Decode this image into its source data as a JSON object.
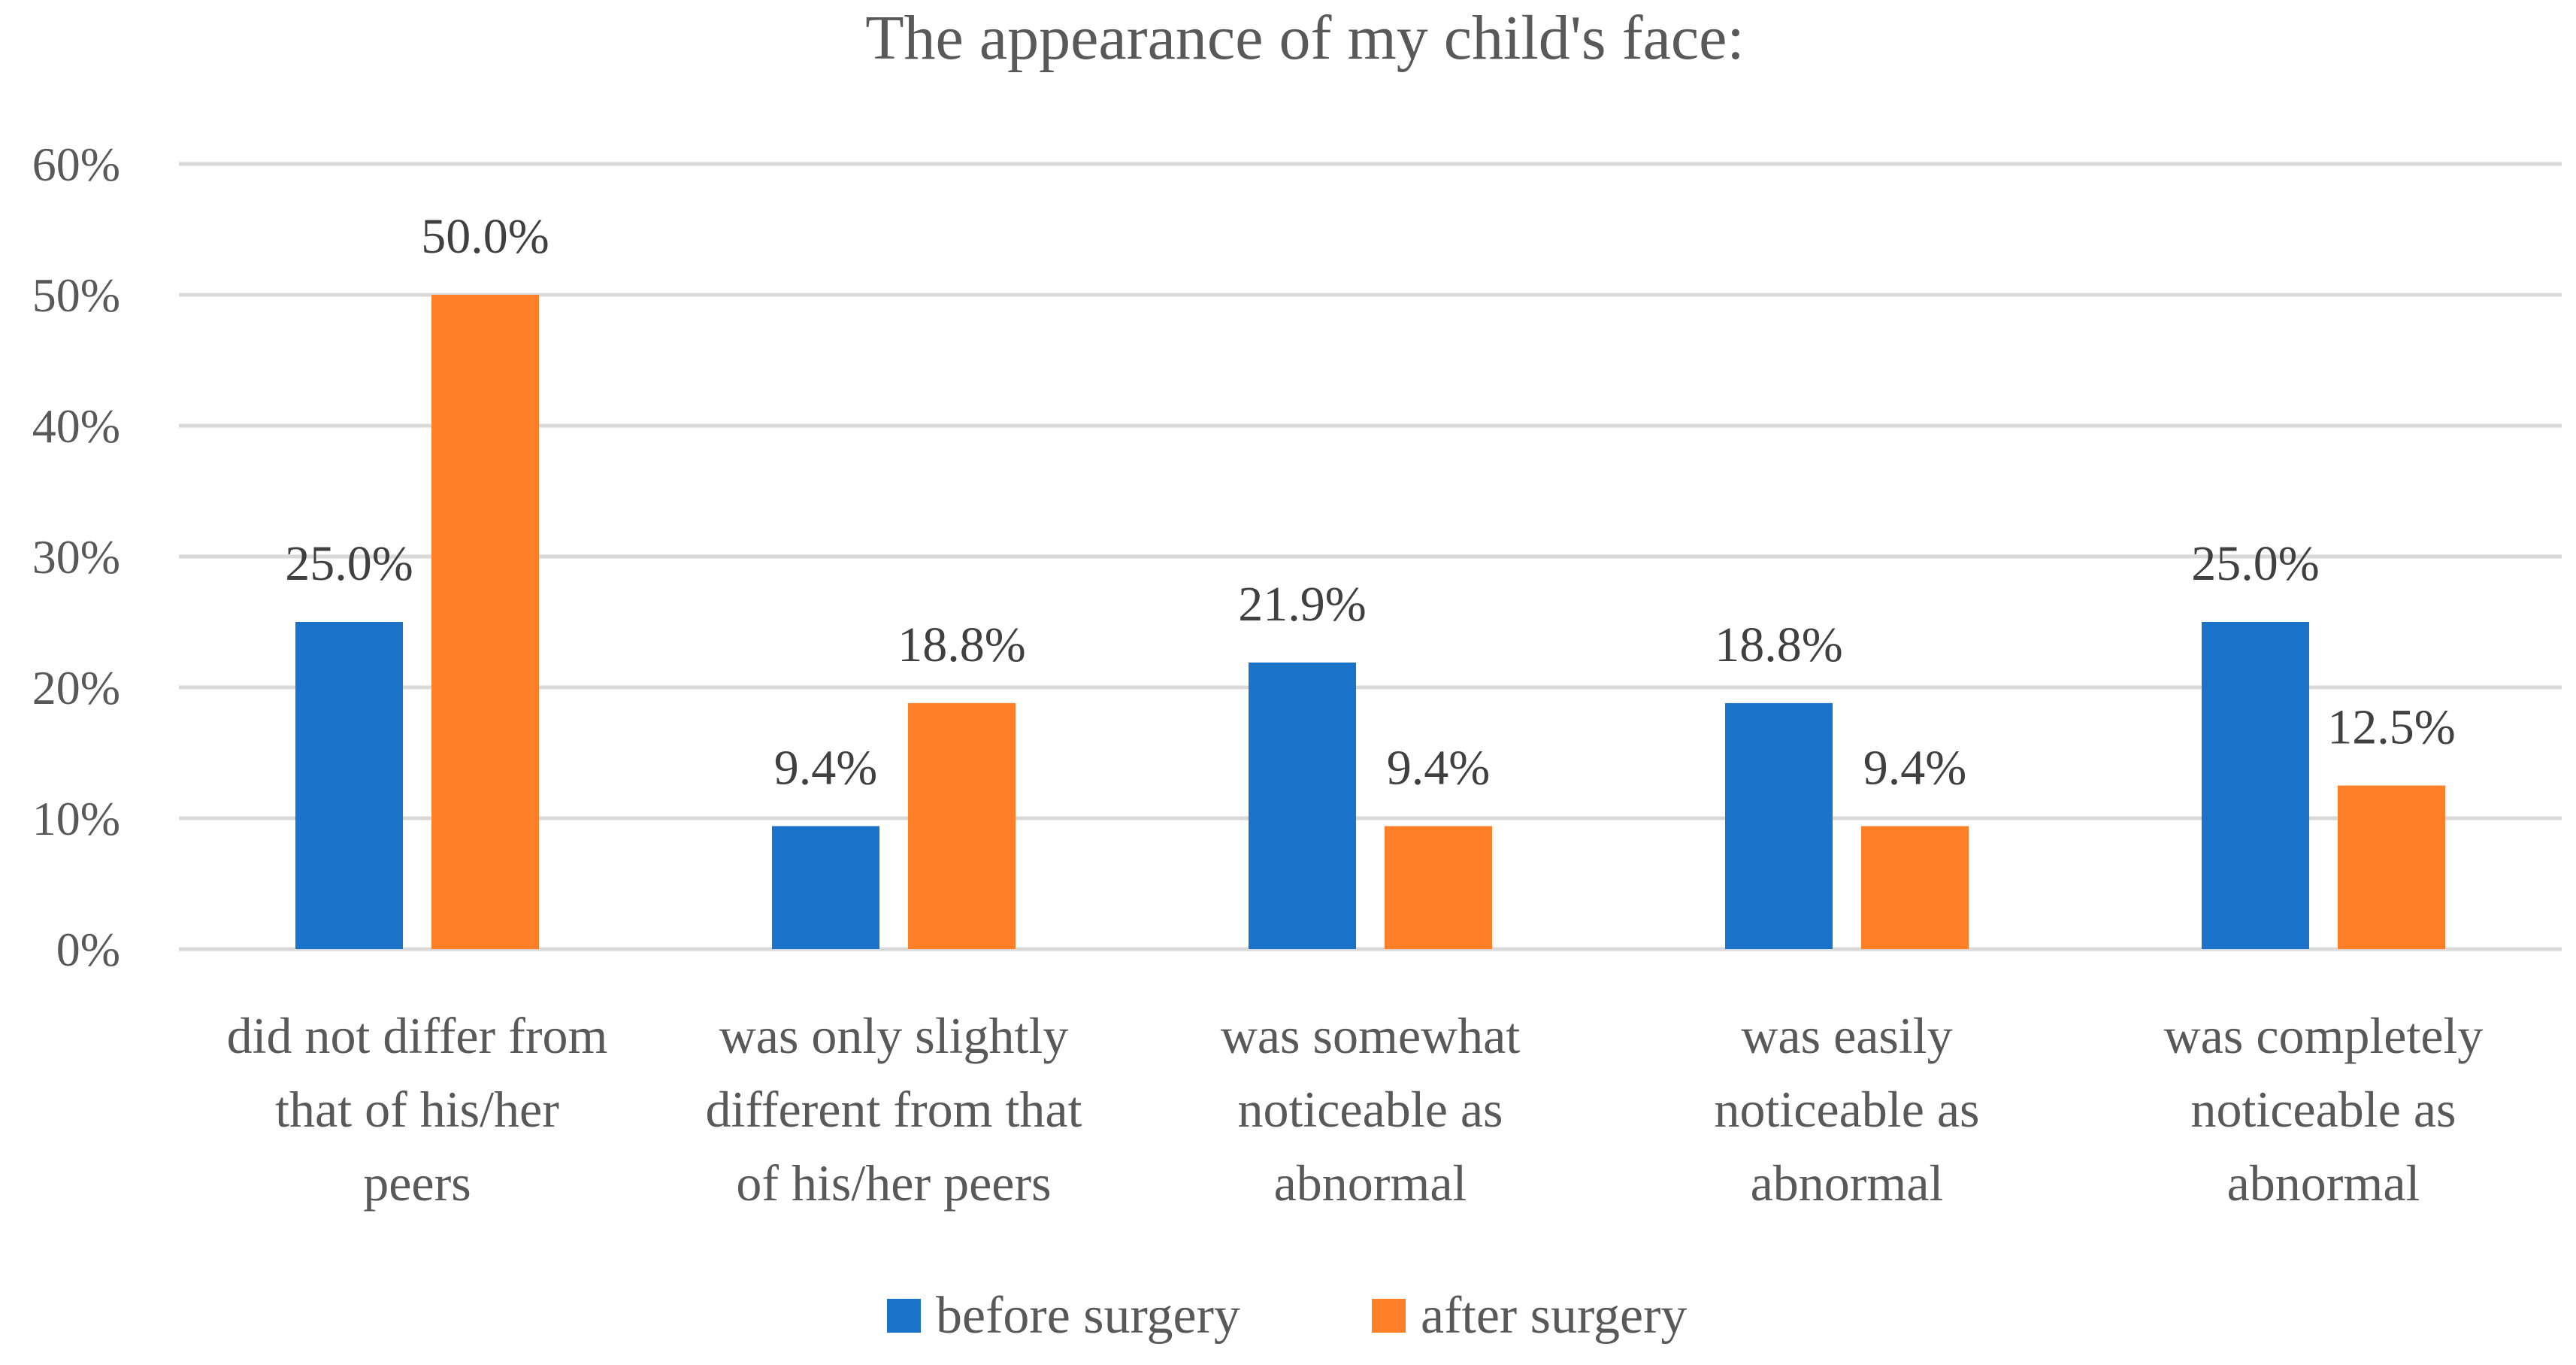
{
  "chart_data": {
    "type": "bar",
    "title": "The appearance of my child's face:",
    "categories": [
      [
        "did not differ from",
        "that of his/her",
        "peers"
      ],
      [
        "was only slightly",
        "different from that",
        "of his/her peers"
      ],
      [
        "was somewhat",
        "noticeable as",
        "abnormal"
      ],
      [
        "was easily",
        "noticeable as",
        "abnormal"
      ],
      [
        "was completely",
        "noticeable as",
        "abnormal"
      ]
    ],
    "series": [
      {
        "name": "before surgery",
        "color": "#1a73c8",
        "values": [
          25.0,
          9.4,
          21.9,
          18.8,
          25.0
        ],
        "labels": [
          "25.0%",
          "9.4%",
          "21.9%",
          "18.8%",
          "25.0%"
        ]
      },
      {
        "name": "after surgery",
        "color": "#fe7f27",
        "values": [
          50.0,
          18.8,
          9.4,
          9.4,
          12.5
        ],
        "labels": [
          "50.0%",
          "18.8%",
          "9.4%",
          "9.4%",
          "12.5%"
        ]
      }
    ],
    "yticks": [
      0,
      10,
      20,
      30,
      40,
      50,
      60
    ],
    "ytick_labels": [
      "0%",
      "10%",
      "20%",
      "30%",
      "40%",
      "50%",
      "60%"
    ],
    "ylim": [
      0,
      60
    ],
    "xlabel": "",
    "ylabel": "",
    "grid": true,
    "legend_position": "bottom"
  }
}
